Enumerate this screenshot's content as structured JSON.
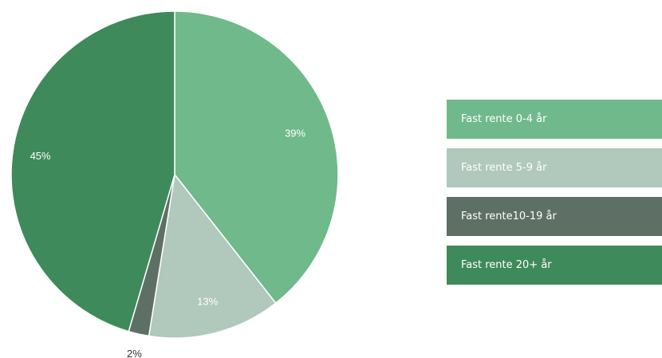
{
  "chart_data": {
    "type": "pie",
    "categories": [
      "Fast rente 0-4 år",
      "Fast rente 5-9 år",
      "Fast rente10-19 år",
      "Fast rente 20+ år"
    ],
    "values": [
      39,
      13,
      2,
      45
    ],
    "value_labels": [
      "39%",
      "13%",
      "2%",
      "45%"
    ],
    "colors": [
      "#6fb98a",
      "#b1c8bc",
      "#5e6f66",
      "#3f8a5a"
    ],
    "legend_placement": "right"
  }
}
